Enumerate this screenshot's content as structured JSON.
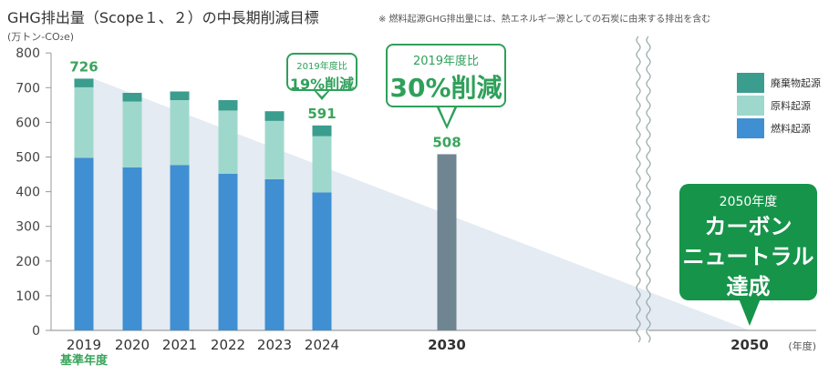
{
  "title": "GHG排出量（Scope１、２）の中長期削減目標",
  "note": "※ 燃料起源GHG排出量には、熱エネルギー源としての石炭に由来する排出を含む",
  "unit_label": "(万トン-CO₂e)",
  "chart_data": {
    "type": "bar",
    "stacked": true,
    "categories": [
      "2019",
      "2020",
      "2021",
      "2022",
      "2023",
      "2024",
      "2030",
      "2050"
    ],
    "category_sublabels": {
      "2019": "基準年度"
    },
    "x_unit_label": "(年度)",
    "ylim": [
      0,
      800
    ],
    "yticks": [
      0,
      100,
      200,
      300,
      400,
      500,
      600,
      700,
      800
    ],
    "series": [
      {
        "name": "燃料起源",
        "color": "#3f8fd2",
        "values": [
          498,
          470,
          477,
          452,
          436,
          398,
          null,
          null
        ]
      },
      {
        "name": "原料起源",
        "color": "#9ed8cc",
        "values": [
          203,
          190,
          187,
          182,
          168,
          162,
          null,
          null
        ]
      },
      {
        "name": "廃棄物起源",
        "color": "#3a9d8e",
        "values": [
          25,
          25,
          25,
          30,
          28,
          31,
          null,
          null
        ]
      }
    ],
    "target_values": {
      "2030": 508,
      "2050": 0
    },
    "target_color": "#6f8591",
    "total_labels": {
      "2019": "726",
      "2024": "591",
      "2030": "508"
    },
    "trend_area": {
      "from": "2019",
      "value_from": 726,
      "to": "2050",
      "value_to": 0,
      "color": "#e4ebf2"
    },
    "axis_break_between": [
      "2030",
      "2050"
    ],
    "legend_position": "right",
    "legend_order": [
      "廃棄物起源",
      "原料起源",
      "燃料起源"
    ],
    "grid": false
  },
  "callouts": {
    "c2024": {
      "pre": "2019年度比",
      "main": "19%削減"
    },
    "c2030": {
      "pre": "2019年度比",
      "main": "30%削減"
    },
    "c2050": {
      "pre": "2050年度",
      "lines": [
        "カーボン",
        "ニュートラル",
        "達成"
      ]
    }
  },
  "colors": {
    "accent_green": "#2fa05a",
    "dark_green": "#16944a",
    "label_green": "#3aa55b"
  }
}
